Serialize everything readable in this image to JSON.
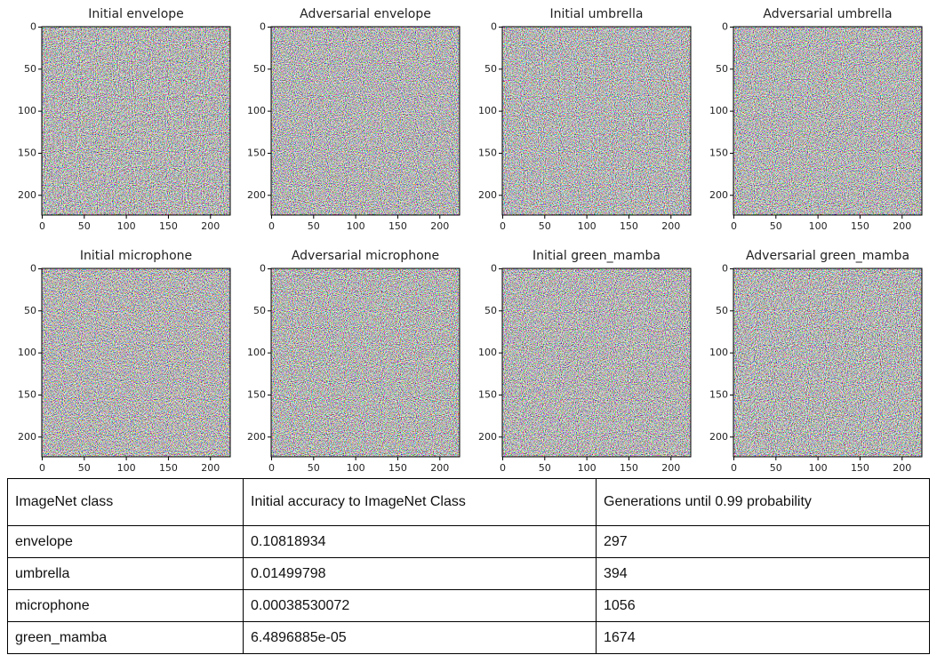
{
  "figure": {
    "panels": [
      {
        "title": "Initial envelope",
        "xlim": [
          -0.5,
          223.5
        ],
        "ylim": [
          -0.5,
          223.5
        ],
        "y_inverted": true,
        "xticks": [
          0,
          50,
          100,
          150,
          200
        ],
        "yticks": [
          0,
          50,
          100,
          150,
          200
        ]
      },
      {
        "title": "Adversarial envelope",
        "xlim": [
          -0.5,
          223.5
        ],
        "ylim": [
          -0.5,
          223.5
        ],
        "y_inverted": true,
        "xticks": [
          0,
          50,
          100,
          150,
          200
        ],
        "yticks": [
          0,
          50,
          100,
          150,
          200
        ]
      },
      {
        "title": "Initial umbrella",
        "xlim": [
          -0.5,
          223.5
        ],
        "ylim": [
          -0.5,
          223.5
        ],
        "y_inverted": true,
        "xticks": [
          0,
          50,
          100,
          150,
          200
        ],
        "yticks": [
          0,
          50,
          100,
          150,
          200
        ]
      },
      {
        "title": "Adversarial umbrella",
        "xlim": [
          -0.5,
          223.5
        ],
        "ylim": [
          -0.5,
          223.5
        ],
        "y_inverted": true,
        "xticks": [
          0,
          50,
          100,
          150,
          200
        ],
        "yticks": [
          0,
          50,
          100,
          150,
          200
        ]
      },
      {
        "title": "Initial microphone",
        "xlim": [
          -0.5,
          223.5
        ],
        "ylim": [
          -0.5,
          223.5
        ],
        "y_inverted": true,
        "xticks": [
          0,
          50,
          100,
          150,
          200
        ],
        "yticks": [
          0,
          50,
          100,
          150,
          200
        ]
      },
      {
        "title": "Adversarial microphone",
        "xlim": [
          -0.5,
          223.5
        ],
        "ylim": [
          -0.5,
          223.5
        ],
        "y_inverted": true,
        "xticks": [
          0,
          50,
          100,
          150,
          200
        ],
        "yticks": [
          0,
          50,
          100,
          150,
          200
        ]
      },
      {
        "title": "Initial green_mamba",
        "xlim": [
          -0.5,
          223.5
        ],
        "ylim": [
          -0.5,
          223.5
        ],
        "y_inverted": true,
        "xticks": [
          0,
          50,
          100,
          150,
          200
        ],
        "yticks": [
          0,
          50,
          100,
          150,
          200
        ]
      },
      {
        "title": "Adversarial green_mamba",
        "xlim": [
          -0.5,
          223.5
        ],
        "ylim": [
          -0.5,
          223.5
        ],
        "y_inverted": true,
        "xticks": [
          0,
          50,
          100,
          150,
          200
        ],
        "yticks": [
          0,
          50,
          100,
          150,
          200
        ]
      }
    ]
  },
  "table": {
    "header": [
      "ImageNet class",
      "Initial accuracy to ImageNet Class",
      "Generations until 0.99 probability"
    ],
    "rows": [
      [
        "envelope",
        "0.10818934",
        "297"
      ],
      [
        "umbrella",
        "0.01499798",
        "394"
      ],
      [
        "microphone",
        "0.00038530072",
        "1056"
      ],
      [
        "green_mamba",
        "6.4896885e-05",
        "1674"
      ]
    ]
  }
}
